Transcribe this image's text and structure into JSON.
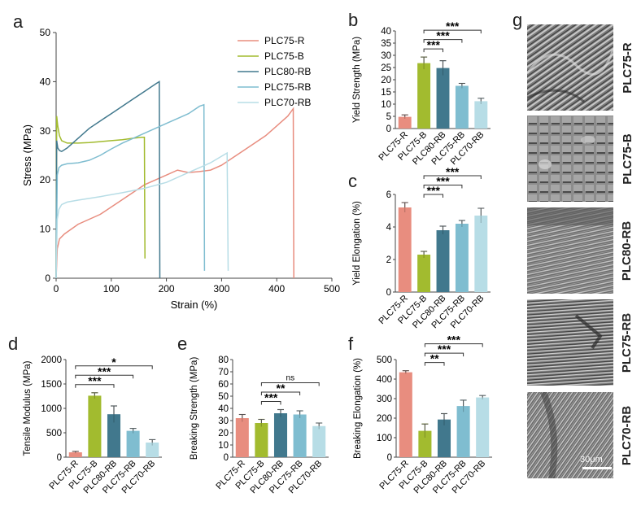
{
  "panel_letters": [
    "a",
    "b",
    "c",
    "d",
    "e",
    "f",
    "g"
  ],
  "colors": {
    "PLC75-R": "#e88d7f",
    "PLC75-B": "#a2bb2f",
    "PLC80-RB": "#41788d",
    "PLC75-RB": "#7fbdd0",
    "PLC70-RB": "#b7dde6",
    "axis": "#444444"
  },
  "chart_data": [
    {
      "id": "a",
      "type": "line",
      "xlabel": "Strain (%)",
      "ylabel": "Stress (MPa)",
      "xlim": [
        0,
        500
      ],
      "ylim": [
        0,
        50
      ],
      "xticks": [
        0,
        100,
        200,
        300,
        400,
        500
      ],
      "yticks": [
        0,
        10,
        20,
        30,
        40,
        50
      ],
      "legend": [
        "PLC75-R",
        "PLC75-B",
        "PLC80-RB",
        "PLC75-RB",
        "PLC70-RB"
      ],
      "series": [
        {
          "name": "PLC75-R",
          "x": [
            0,
            2,
            6,
            15,
            40,
            80,
            120,
            160,
            200,
            220,
            240,
            260,
            280,
            300,
            320,
            340,
            360,
            380,
            400,
            420,
            430,
            431
          ],
          "y": [
            0,
            6,
            8,
            9,
            11,
            13,
            16,
            19,
            21,
            22,
            21.5,
            21.7,
            22,
            23,
            24.5,
            26,
            27.5,
            29,
            31,
            33,
            34.5,
            0
          ]
        },
        {
          "name": "PLC75-B",
          "x": [
            0,
            1,
            3,
            6,
            10,
            20,
            40,
            60,
            80,
            100,
            120,
            140,
            155,
            160,
            161
          ],
          "y": [
            0,
            33,
            31,
            29,
            28,
            27.5,
            27.5,
            27.6,
            27.8,
            28,
            28.2,
            28.5,
            28.7,
            28.7,
            4
          ]
        },
        {
          "name": "PLC80-RB",
          "x": [
            0,
            1,
            3,
            6,
            10,
            20,
            40,
            60,
            80,
            100,
            120,
            140,
            160,
            180,
            187,
            188
          ],
          "y": [
            0,
            28,
            26.5,
            26,
            25.8,
            26.5,
            28.5,
            30.5,
            32,
            33.5,
            35,
            36.5,
            38,
            39.5,
            40,
            0
          ]
        },
        {
          "name": "PLC75-RB",
          "x": [
            0,
            2,
            5,
            10,
            20,
            40,
            60,
            80,
            100,
            120,
            140,
            160,
            180,
            200,
            220,
            240,
            260,
            268,
            269
          ],
          "y": [
            0,
            21,
            22.5,
            23,
            23.3,
            23.5,
            24,
            25,
            26.3,
            27.5,
            28.5,
            29.5,
            30.5,
            31.5,
            32.5,
            33.5,
            35,
            35.3,
            1.5
          ]
        },
        {
          "name": "PLC70-RB",
          "x": [
            0,
            2,
            5,
            10,
            20,
            40,
            80,
            120,
            160,
            200,
            240,
            280,
            310,
            312
          ],
          "y": [
            0,
            12,
            14,
            15,
            15.5,
            15.9,
            16.6,
            17.4,
            18.3,
            19.5,
            21.5,
            23.5,
            25.5,
            1.5
          ]
        }
      ]
    },
    {
      "id": "b",
      "type": "bar",
      "ylabel": "Yield Strength (MPa)",
      "categories": [
        "PLC75-R",
        "PLC75-B",
        "PLC80-RB",
        "PLC75-RB",
        "PLC70-RB"
      ],
      "values": [
        4.8,
        26.8,
        24.8,
        17.5,
        11.2
      ],
      "errors": [
        0.8,
        2.5,
        3.0,
        1.0,
        1.2
      ],
      "ylim": [
        0,
        40
      ],
      "yticks": [
        0,
        5,
        10,
        15,
        20,
        25,
        30,
        35,
        40
      ],
      "significance": [
        {
          "from": 1,
          "to": 2,
          "label": "***"
        },
        {
          "from": 1,
          "to": 3,
          "label": "***"
        },
        {
          "from": 1,
          "to": 4,
          "label": "***"
        }
      ]
    },
    {
      "id": "c",
      "type": "bar",
      "ylabel": "Yield Elongation (%)",
      "categories": [
        "PLC75-R",
        "PLC75-B",
        "PLC80-RB",
        "PLC75-RB",
        "PLC70-RB"
      ],
      "values": [
        5.2,
        2.3,
        3.8,
        4.2,
        4.7
      ],
      "errors": [
        0.3,
        0.2,
        0.25,
        0.2,
        0.45
      ],
      "ylim": [
        0,
        6
      ],
      "yticks": [
        0,
        2,
        4,
        6
      ],
      "significance": [
        {
          "from": 1,
          "to": 2,
          "label": "***"
        },
        {
          "from": 1,
          "to": 3,
          "label": "***"
        },
        {
          "from": 1,
          "to": 4,
          "label": "***"
        }
      ]
    },
    {
      "id": "d",
      "type": "bar",
      "ylabel": "Tensile Modulus (MPa)",
      "categories": [
        "PLC75-R",
        "PLC75-B",
        "PLC80-RB",
        "PLC75-RB",
        "PLC70-RB"
      ],
      "values": [
        100,
        1260,
        880,
        540,
        300
      ],
      "errors": [
        20,
        60,
        170,
        50,
        60
      ],
      "ylim": [
        0,
        2000
      ],
      "yticks": [
        0,
        500,
        1000,
        1500,
        2000
      ],
      "significance": [
        {
          "from": 0,
          "to": 2,
          "label": "***"
        },
        {
          "from": 0,
          "to": 3,
          "label": "***"
        },
        {
          "from": 0,
          "to": 4,
          "label": "*"
        }
      ]
    },
    {
      "id": "e",
      "type": "bar",
      "ylabel": "Breaking Strength (MPa)",
      "categories": [
        "PLC75-R",
        "PLC75-B",
        "PLC80-RB",
        "PLC75-RB",
        "PLC70-RB"
      ],
      "values": [
        32,
        28,
        36,
        35,
        25.5
      ],
      "errors": [
        3,
        3,
        3,
        3,
        2.5
      ],
      "ylim": [
        0,
        80
      ],
      "yticks": [
        0,
        10,
        20,
        30,
        40,
        50,
        60,
        70,
        80
      ],
      "significance": [
        {
          "from": 1,
          "to": 2,
          "label": "***"
        },
        {
          "from": 1,
          "to": 3,
          "label": "**"
        },
        {
          "from": 1,
          "to": 4,
          "label": "ns"
        }
      ]
    },
    {
      "id": "f",
      "type": "bar",
      "ylabel": "Breaking Elongation (%)",
      "categories": [
        "PLC75-R",
        "PLC75-B",
        "PLC80-RB",
        "PLC75-RB",
        "PLC70-RB"
      ],
      "values": [
        435,
        135,
        193,
        262,
        306
      ],
      "errors": [
        8,
        35,
        30,
        30,
        10
      ],
      "ylim": [
        0,
        500
      ],
      "yticks": [
        0,
        100,
        200,
        300,
        400,
        500
      ],
      "significance": [
        {
          "from": 1,
          "to": 2,
          "label": "**"
        },
        {
          "from": 1,
          "to": 3,
          "label": "***"
        },
        {
          "from": 1,
          "to": 4,
          "label": "***"
        }
      ]
    }
  ],
  "sem": {
    "labels": [
      "PLC75-R",
      "PLC75-B",
      "PLC80-RB",
      "PLC75-RB",
      "PLC70-RB"
    ],
    "scale_label": "30μm"
  }
}
